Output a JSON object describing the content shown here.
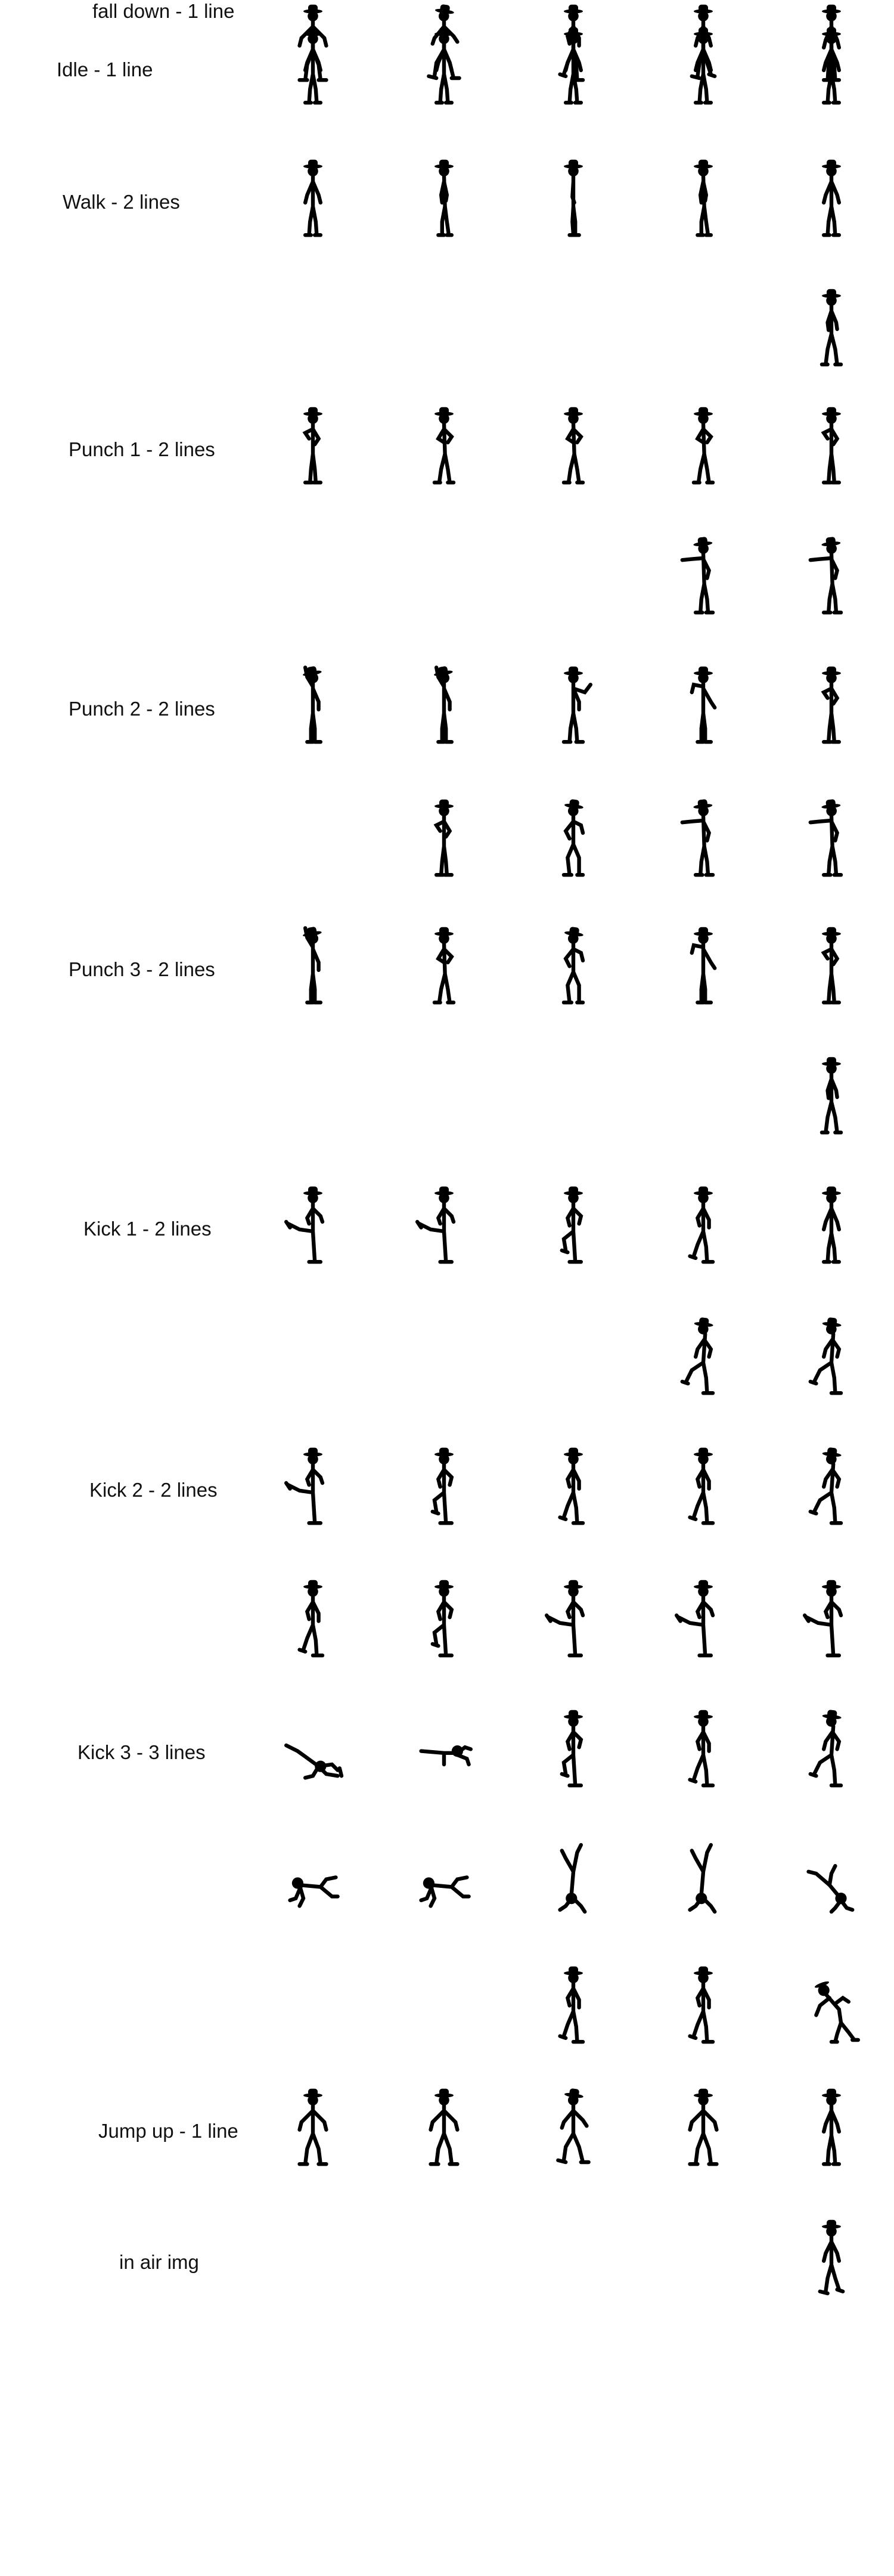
{
  "colors": {
    "background": "#ffffff",
    "figure": "#000000",
    "label": "#111111"
  },
  "rows": [
    {
      "label": "Idle - 1 line",
      "lines": [
        [
          0,
          0,
          0,
          0,
          0
        ]
      ]
    },
    {
      "label": "Walk - 2 lines",
      "lines": [
        [
          0,
          1,
          2,
          1,
          0
        ],
        [
          null,
          null,
          null,
          null,
          3
        ]
      ]
    },
    {
      "label": "Punch 1 - 2 lines",
      "lines": [
        [
          4,
          5,
          5,
          5,
          4
        ],
        [
          null,
          null,
          null,
          6,
          6
        ]
      ]
    },
    {
      "label": "Punch 2 - 2 lines",
      "lines": [
        [
          7,
          7,
          8,
          9,
          4
        ],
        [
          null,
          4,
          10,
          6,
          6
        ]
      ]
    },
    {
      "label": "Punch 3 - 2 lines",
      "lines": [
        [
          7,
          5,
          10,
          9,
          4
        ],
        [
          null,
          null,
          null,
          null,
          3
        ]
      ]
    },
    {
      "label": "Kick 1 - 2 lines",
      "lines": [
        [
          11,
          11,
          12,
          13,
          0
        ],
        [
          null,
          null,
          null,
          14,
          14
        ]
      ]
    },
    {
      "label": "Kick 2 - 2 lines",
      "lines": [
        [
          11,
          12,
          13,
          13,
          14
        ],
        [
          13,
          12,
          11,
          11,
          11
        ]
      ]
    },
    {
      "label": "Kick 3 - 3 lines",
      "lines": [
        [
          15,
          16,
          12,
          13,
          14
        ],
        [
          17,
          17,
          18,
          18,
          19
        ],
        [
          null,
          null,
          13,
          13,
          20
        ]
      ]
    },
    {
      "label": "Jump up - 1 line",
      "lines": [
        [
          21,
          21,
          22,
          21,
          0
        ]
      ]
    },
    {
      "label": "in air img",
      "lines": [
        [
          null,
          null,
          null,
          null,
          23
        ]
      ]
    },
    {
      "label": "fall down - 1 line",
      "lines": [
        [
          21,
          22,
          13,
          23,
          0
        ]
      ]
    }
  ]
}
